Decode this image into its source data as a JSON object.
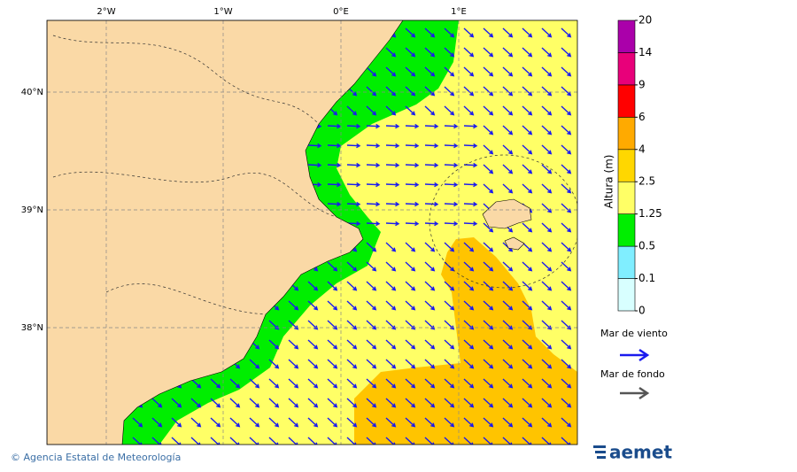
{
  "map": {
    "lon_labels": [
      "2°W",
      "1°W",
      "0°E",
      "1°E"
    ],
    "lat_labels": [
      "40°N",
      "39°N",
      "38°N"
    ]
  },
  "legend": {
    "title": "Altura (m)",
    "levels": [
      0,
      0.1,
      0.5,
      1.25,
      2.5,
      4,
      6,
      9,
      14,
      20
    ],
    "colors": [
      "#d8ffff",
      "#80eeff",
      "#00ee00",
      "#ffff66",
      "#ffd700",
      "#ffaa00",
      "#ff0000",
      "#e8007a",
      "#aa00aa"
    ],
    "wind_sea": "Mar de viento",
    "swell": "Mar de fondo"
  },
  "footer": {
    "credit": "© Agencia Estatal de Meteorología",
    "logo": "aemet"
  }
}
